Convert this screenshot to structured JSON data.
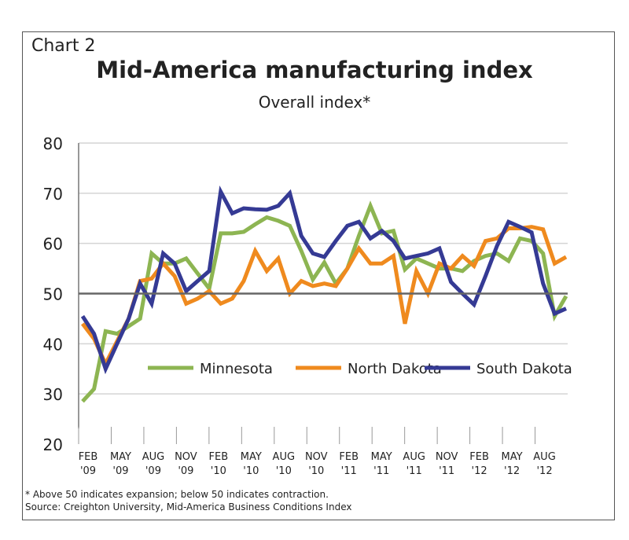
{
  "chart_data": {
    "type": "line",
    "chart_label": "Chart 2",
    "title": "Mid-America manufacturing index",
    "subtitle": "Overall index*",
    "ylim": [
      20,
      80
    ],
    "yticks": [
      20,
      30,
      40,
      50,
      60,
      70,
      80
    ],
    "reference_line": 50,
    "xtick_labels": [
      [
        "Feb",
        "'09"
      ],
      [
        "May",
        "'09"
      ],
      [
        "Aug",
        "'09"
      ],
      [
        "Nov",
        "'09"
      ],
      [
        "Feb",
        "'10"
      ],
      [
        "May",
        "'10"
      ],
      [
        "Aug",
        "'10"
      ],
      [
        "Nov",
        "'10"
      ],
      [
        "Feb",
        "'11"
      ],
      [
        "May",
        "'11"
      ],
      [
        "Aug",
        "'11"
      ],
      [
        "Nov",
        "'11"
      ],
      [
        "Feb",
        "'12"
      ],
      [
        "May",
        "'12"
      ],
      [
        "Aug",
        "'12"
      ]
    ],
    "x_range": [
      "Feb 2009",
      "Aug 2012"
    ],
    "frequency": "monthly",
    "grid": "horizontal",
    "legend_placement": "center",
    "series": [
      {
        "name": "Minnesota",
        "color": "#8db552",
        "values": [
          28.5,
          31,
          42.5,
          42,
          43.5,
          45,
          58,
          56,
          56,
          57,
          54,
          51,
          62,
          62,
          62.3,
          63.8,
          65.2,
          64.5,
          63.5,
          58.5,
          52.8,
          56.2,
          52,
          55,
          61.5,
          67.5,
          62,
          62.5,
          54.8,
          57,
          56,
          55,
          55,
          54.5,
          56.5,
          57.5,
          58,
          56.5,
          61,
          60.5,
          58,
          45.5,
          49.5
        ]
      },
      {
        "name": "North Dakota",
        "color": "#ef8a1e",
        "values": [
          44,
          41,
          36,
          40.5,
          45,
          52.5,
          53,
          56,
          53.5,
          48,
          49,
          50.5,
          48,
          49,
          52.5,
          58.5,
          54.5,
          57,
          50,
          52.5,
          51.5,
          52,
          51.5,
          55,
          59,
          56,
          56,
          57.5,
          44,
          54.5,
          50,
          56,
          55,
          57.5,
          55.5,
          60.5,
          61,
          63,
          63,
          63.3,
          62.8,
          56,
          57.3
        ]
      },
      {
        "name": "South Dakota",
        "color": "#353a94",
        "values": [
          45.5,
          42,
          35,
          40,
          45,
          52,
          48,
          58,
          56,
          50.5,
          52.5,
          54.5,
          70.3,
          66,
          67,
          66.8,
          66.7,
          67.5,
          70,
          61.5,
          58,
          57.3,
          60.5,
          63.5,
          64.3,
          61,
          62.5,
          60.5,
          57,
          57.5,
          58,
          59,
          52.3,
          50,
          47.8,
          53.5,
          59.5,
          64.3,
          63.3,
          62.2,
          52,
          46,
          47
        ]
      }
    ],
    "footnote": "* Above 50 indicates expansion; below 50 indicates contraction.",
    "source": "Source: Creighton University, Mid-America Business Conditions Index"
  }
}
